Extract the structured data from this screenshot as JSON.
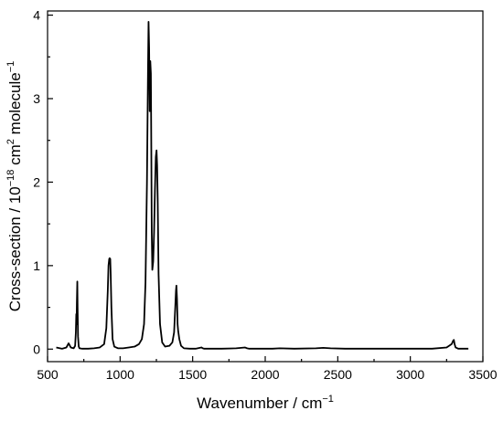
{
  "chart_data": {
    "type": "line",
    "xlabel": "Wavenumber / cm⁻¹",
    "ylabel": "Cross-section / 10⁻¹⁸ cm² molecule⁻¹",
    "xlabel_parts": {
      "main": "Wavenumber / cm",
      "sup": "−1"
    },
    "ylabel_parts": {
      "a": "Cross-section / 10",
      "sup1": "−18",
      "b": " cm",
      "sup2": "2",
      "c": " molecule",
      "sup3": "−1"
    },
    "xlim": [
      500,
      3500
    ],
    "ylim": [
      -0.15,
      4.05
    ],
    "xticks": [
      500,
      1000,
      1500,
      2000,
      2500,
      3000,
      3500
    ],
    "yticks": [
      0,
      1,
      2,
      3,
      4
    ],
    "grid": false,
    "line_color": "#000000",
    "series": [
      {
        "x": [
          560,
          600,
          630,
          645,
          660,
          680,
          690,
          695,
          698,
          700,
          702,
          705,
          707,
          710,
          715,
          720,
          740,
          780,
          820,
          860,
          890,
          905,
          915,
          920,
          925,
          928,
          930,
          932,
          935,
          940,
          948,
          960,
          985,
          1020,
          1060,
          1100,
          1130,
          1150,
          1165,
          1175,
          1185,
          1192,
          1196,
          1200,
          1204,
          1208,
          1212,
          1215,
          1218,
          1222,
          1228,
          1234,
          1240,
          1246,
          1251,
          1255,
          1259,
          1265,
          1275,
          1290,
          1310,
          1340,
          1360,
          1372,
          1380,
          1385,
          1388,
          1392,
          1396,
          1400,
          1408,
          1420,
          1440,
          1480,
          1520,
          1560,
          1570,
          1580,
          1620,
          1700,
          1800,
          1860,
          1875,
          1890,
          1950,
          2050,
          2100,
          2200,
          2350,
          2400,
          2450,
          2550,
          2700,
          2850,
          3000,
          3150,
          3250,
          3285,
          3295,
          3300,
          3305,
          3312,
          3330,
          3400
        ],
        "y": [
          0.02,
          0.005,
          0.02,
          0.07,
          0.02,
          0.01,
          0.04,
          0.2,
          0.42,
          0.3,
          0.55,
          0.81,
          0.5,
          0.15,
          0.03,
          0.01,
          0.005,
          0.005,
          0.01,
          0.02,
          0.06,
          0.25,
          0.7,
          1.0,
          1.08,
          1.09,
          1.05,
          1.08,
          0.9,
          0.5,
          0.12,
          0.03,
          0.01,
          0.01,
          0.02,
          0.03,
          0.06,
          0.12,
          0.3,
          0.8,
          2.0,
          3.3,
          3.92,
          3.6,
          2.85,
          3.45,
          3.3,
          2.4,
          1.4,
          0.95,
          1.05,
          1.4,
          1.9,
          2.3,
          2.38,
          2.2,
          1.8,
          0.9,
          0.3,
          0.08,
          0.03,
          0.04,
          0.08,
          0.2,
          0.5,
          0.7,
          0.76,
          0.6,
          0.3,
          0.22,
          0.12,
          0.04,
          0.01,
          0.005,
          0.005,
          0.02,
          0.01,
          0.005,
          0.005,
          0.005,
          0.01,
          0.02,
          0.01,
          0.005,
          0.005,
          0.005,
          0.01,
          0.005,
          0.01,
          0.015,
          0.01,
          0.005,
          0.005,
          0.005,
          0.005,
          0.005,
          0.02,
          0.06,
          0.1,
          0.11,
          0.06,
          0.02,
          0.005,
          0.005
        ]
      }
    ]
  }
}
